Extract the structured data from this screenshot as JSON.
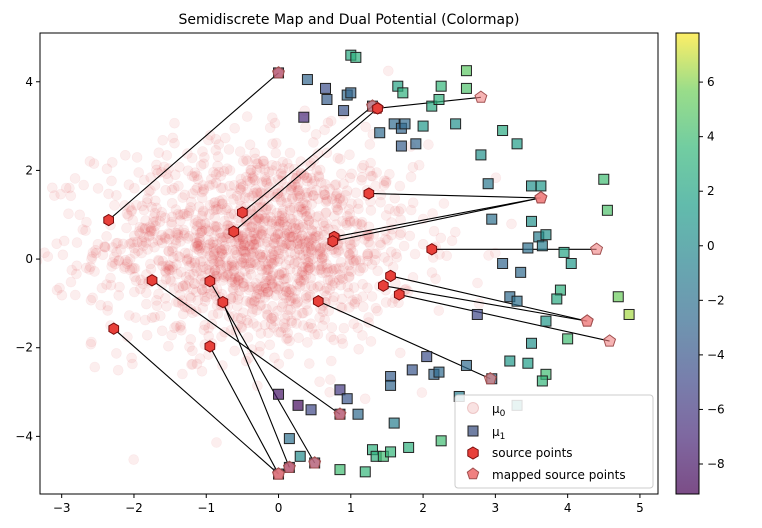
{
  "chart_data": {
    "type": "scatter",
    "title": "Semidiscrete Map and Dual Potential (Colormap)",
    "xlabel": "",
    "ylabel": "",
    "xlim": [
      -3.3,
      5.25
    ],
    "ylim": [
      -5.3,
      5.1
    ],
    "xticks": [
      -3,
      -2,
      -1,
      0,
      1,
      2,
      3,
      4,
      5
    ],
    "yticks": [
      -4,
      -2,
      0,
      2,
      4
    ],
    "grid": false,
    "legend": {
      "placement": "lower-right",
      "entries": [
        {
          "key": "mu0",
          "label": "μ₀",
          "label_main": "μ",
          "label_sub": "0"
        },
        {
          "key": "mu1",
          "label": "μ₁",
          "label_main": "μ",
          "label_sub": "1"
        },
        {
          "key": "source",
          "label": "source points"
        },
        {
          "key": "mapped",
          "label": "mapped source points"
        }
      ]
    },
    "colorbar": {
      "colormap": "viridis",
      "alpha": 0.7,
      "range": [
        -9.1,
        7.8
      ],
      "ticks": [
        -8,
        -6,
        -4,
        -2,
        0,
        2,
        4,
        6
      ]
    },
    "mu0": {
      "description_count": 1500,
      "distribution": "gaussian",
      "center": [
        -0.3,
        0.3
      ],
      "std": [
        1.1,
        1.15
      ],
      "color": "#d62728",
      "alpha": 0.08
    },
    "mu1": [
      {
        "x": 0.0,
        "y": 4.2,
        "c": -8.0
      },
      {
        "x": 0.4,
        "y": 4.05,
        "c": -3.0
      },
      {
        "x": 1.0,
        "y": 4.6,
        "c": 2.5
      },
      {
        "x": 1.07,
        "y": 4.55,
        "c": 3.0
      },
      {
        "x": 0.65,
        "y": 3.85,
        "c": -4.5
      },
      {
        "x": 0.67,
        "y": 3.6,
        "c": -3.5
      },
      {
        "x": 0.95,
        "y": 3.7,
        "c": -2.5
      },
      {
        "x": 1.0,
        "y": 3.75,
        "c": -3.0
      },
      {
        "x": 0.35,
        "y": 3.2,
        "c": -7.0
      },
      {
        "x": 0.9,
        "y": 3.35,
        "c": -4.0
      },
      {
        "x": 1.3,
        "y": 3.45,
        "c": -3.5
      },
      {
        "x": 1.4,
        "y": 2.85,
        "c": -2.5
      },
      {
        "x": 1.6,
        "y": 3.05,
        "c": -2.5
      },
      {
        "x": 1.7,
        "y": 2.95,
        "c": -3.0
      },
      {
        "x": 1.75,
        "y": 3.05,
        "c": -2.5
      },
      {
        "x": 1.7,
        "y": 2.55,
        "c": -3.5
      },
      {
        "x": 1.9,
        "y": 2.6,
        "c": -3.0
      },
      {
        "x": 1.65,
        "y": 3.9,
        "c": 2.0
      },
      {
        "x": 1.72,
        "y": 3.75,
        "c": 3.0
      },
      {
        "x": 2.0,
        "y": 3.0,
        "c": 1.0
      },
      {
        "x": 2.12,
        "y": 3.45,
        "c": 2.5
      },
      {
        "x": 2.25,
        "y": 3.9,
        "c": 3.5
      },
      {
        "x": 2.22,
        "y": 3.6,
        "c": 3.0
      },
      {
        "x": 2.6,
        "y": 4.25,
        "c": 5.0
      },
      {
        "x": 2.6,
        "y": 3.85,
        "c": 4.5
      },
      {
        "x": 2.45,
        "y": 3.05,
        "c": 0.5
      },
      {
        "x": 2.8,
        "y": 2.35,
        "c": 0.5
      },
      {
        "x": 3.1,
        "y": 2.9,
        "c": 2.5
      },
      {
        "x": 3.3,
        "y": 2.6,
        "c": 1.5
      },
      {
        "x": 2.9,
        "y": 1.7,
        "c": -1.5
      },
      {
        "x": 3.5,
        "y": 1.65,
        "c": 0.5
      },
      {
        "x": 3.63,
        "y": 1.65,
        "c": 1.0
      },
      {
        "x": 4.5,
        "y": 1.8,
        "c": 4.0
      },
      {
        "x": 4.55,
        "y": 1.1,
        "c": 4.5
      },
      {
        "x": 3.5,
        "y": 0.85,
        "c": 0.5
      },
      {
        "x": 3.6,
        "y": 0.5,
        "c": -1.0
      },
      {
        "x": 3.7,
        "y": 0.55,
        "c": 0.5
      },
      {
        "x": 2.95,
        "y": 0.9,
        "c": -2.0
      },
      {
        "x": 3.45,
        "y": 0.25,
        "c": -2.0
      },
      {
        "x": 3.65,
        "y": 0.3,
        "c": -1.0
      },
      {
        "x": 3.95,
        "y": 0.15,
        "c": 2.0
      },
      {
        "x": 4.05,
        "y": -0.1,
        "c": 1.0
      },
      {
        "x": 3.1,
        "y": -0.1,
        "c": -3.0
      },
      {
        "x": 3.35,
        "y": -0.3,
        "c": -2.5
      },
      {
        "x": 4.7,
        "y": -0.85,
        "c": 5.5
      },
      {
        "x": 4.85,
        "y": -1.25,
        "c": 6.5
      },
      {
        "x": 3.9,
        "y": -0.7,
        "c": 3.0
      },
      {
        "x": 3.85,
        "y": -0.9,
        "c": 2.5
      },
      {
        "x": 3.7,
        "y": -1.4,
        "c": 1.0
      },
      {
        "x": 3.2,
        "y": -0.85,
        "c": -2.5
      },
      {
        "x": 3.3,
        "y": -0.95,
        "c": -2.0
      },
      {
        "x": 2.75,
        "y": -1.25,
        "c": -5.0
      },
      {
        "x": 4.0,
        "y": -1.8,
        "c": 4.0
      },
      {
        "x": 3.5,
        "y": -1.9,
        "c": 0.5
      },
      {
        "x": 3.2,
        "y": -2.3,
        "c": 1.0
      },
      {
        "x": 3.45,
        "y": -2.35,
        "c": 1.5
      },
      {
        "x": 3.7,
        "y": -2.6,
        "c": 4.0
      },
      {
        "x": 3.65,
        "y": -2.75,
        "c": 3.5
      },
      {
        "x": 2.6,
        "y": -2.4,
        "c": -2.5
      },
      {
        "x": 2.95,
        "y": -2.7,
        "c": -3.0
      },
      {
        "x": 2.05,
        "y": -2.2,
        "c": -4.5
      },
      {
        "x": 2.15,
        "y": -2.6,
        "c": -3.0
      },
      {
        "x": 2.22,
        "y": -2.55,
        "c": -2.5
      },
      {
        "x": 1.85,
        "y": -2.5,
        "c": -4.0
      },
      {
        "x": 1.55,
        "y": -2.65,
        "c": -3.5
      },
      {
        "x": 1.55,
        "y": -2.85,
        "c": -3.0
      },
      {
        "x": 0.85,
        "y": -2.95,
        "c": -6.0
      },
      {
        "x": 0.95,
        "y": -3.15,
        "c": -4.0
      },
      {
        "x": 0.0,
        "y": -3.05,
        "c": -8.0
      },
      {
        "x": 0.27,
        "y": -3.3,
        "c": -8.5
      },
      {
        "x": 0.45,
        "y": -3.4,
        "c": -5.0
      },
      {
        "x": 0.85,
        "y": -3.5,
        "c": -7.5
      },
      {
        "x": 1.1,
        "y": -3.5,
        "c": -2.5
      },
      {
        "x": 1.6,
        "y": -3.7,
        "c": -1.0
      },
      {
        "x": 2.5,
        "y": -3.1,
        "c": -1.0
      },
      {
        "x": 3.3,
        "y": -3.3,
        "c": 0.5
      },
      {
        "x": 0.15,
        "y": -4.05,
        "c": -2.0
      },
      {
        "x": 0.3,
        "y": -4.45,
        "c": 0.0
      },
      {
        "x": 0.5,
        "y": -4.6,
        "c": -6.0
      },
      {
        "x": 0.85,
        "y": -4.75,
        "c": 4.0
      },
      {
        "x": 1.3,
        "y": -4.3,
        "c": 3.0
      },
      {
        "x": 1.35,
        "y": -4.45,
        "c": 3.0
      },
      {
        "x": 1.45,
        "y": -4.45,
        "c": 4.0
      },
      {
        "x": 1.55,
        "y": -4.35,
        "c": 3.5
      },
      {
        "x": 1.8,
        "y": -4.25,
        "c": 3.0
      },
      {
        "x": 2.25,
        "y": -4.1,
        "c": 4.0
      },
      {
        "x": 1.2,
        "y": -4.8,
        "c": 3.5
      },
      {
        "x": 0.0,
        "y": -4.85,
        "c": -8.0
      },
      {
        "x": 0.15,
        "y": -4.7,
        "c": -8.5
      }
    ],
    "source_points": [
      {
        "x": -2.35,
        "y": 0.88
      },
      {
        "x": -0.5,
        "y": 1.05
      },
      {
        "x": -0.62,
        "y": 0.62
      },
      {
        "x": 1.37,
        "y": 3.4
      },
      {
        "x": 1.25,
        "y": 1.48
      },
      {
        "x": 0.77,
        "y": 0.5
      },
      {
        "x": 0.75,
        "y": 0.4
      },
      {
        "x": 2.12,
        "y": 0.22
      },
      {
        "x": 1.55,
        "y": -0.38
      },
      {
        "x": 1.45,
        "y": -0.6
      },
      {
        "x": 1.67,
        "y": -0.8
      },
      {
        "x": 0.55,
        "y": -0.95
      },
      {
        "x": -1.75,
        "y": -0.48
      },
      {
        "x": -0.95,
        "y": -0.5
      },
      {
        "x": -0.77,
        "y": -0.97
      },
      {
        "x": -2.28,
        "y": -1.57
      },
      {
        "x": -0.95,
        "y": -1.97
      }
    ],
    "mapped_points": [
      {
        "x": 0.0,
        "y": 4.2
      },
      {
        "x": 1.3,
        "y": 3.45
      },
      {
        "x": 1.37,
        "y": 3.4
      },
      {
        "x": 2.8,
        "y": 3.65
      },
      {
        "x": 3.63,
        "y": 1.38
      },
      {
        "x": 3.63,
        "y": 1.38
      },
      {
        "x": 3.63,
        "y": 1.38
      },
      {
        "x": 4.4,
        "y": 0.22
      },
      {
        "x": 4.27,
        "y": -1.4
      },
      {
        "x": 4.27,
        "y": -1.4
      },
      {
        "x": 4.58,
        "y": -1.85
      },
      {
        "x": 2.93,
        "y": -2.7
      },
      {
        "x": 0.85,
        "y": -3.5
      },
      {
        "x": 0.5,
        "y": -4.6
      },
      {
        "x": 0.15,
        "y": -4.7
      },
      {
        "x": 0.0,
        "y": -4.85
      },
      {
        "x": 0.0,
        "y": -4.85
      }
    ],
    "colors": {
      "source_face": "#e8403a",
      "source_edge": "#7a0c0c",
      "mapped_face": "#f08080",
      "line": "#000000",
      "mu1_edge": "#222222"
    }
  }
}
